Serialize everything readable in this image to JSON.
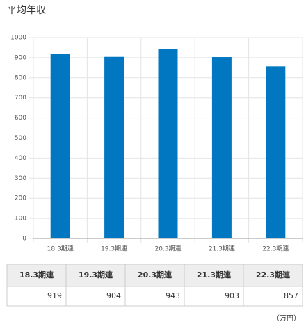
{
  "chart_data": {
    "type": "bar",
    "title": "平均年収",
    "categories": [
      "18.3期連",
      "19.3期連",
      "20.3期連",
      "21.3期連",
      "22.3期連"
    ],
    "values": [
      919,
      904,
      943,
      903,
      857
    ],
    "color": "#0077c0",
    "ylim": [
      0,
      1000
    ],
    "yticks": [
      0,
      100,
      200,
      300,
      400,
      500,
      600,
      700,
      800,
      900,
      1000
    ],
    "grid": true,
    "unit": "（万円）"
  }
}
